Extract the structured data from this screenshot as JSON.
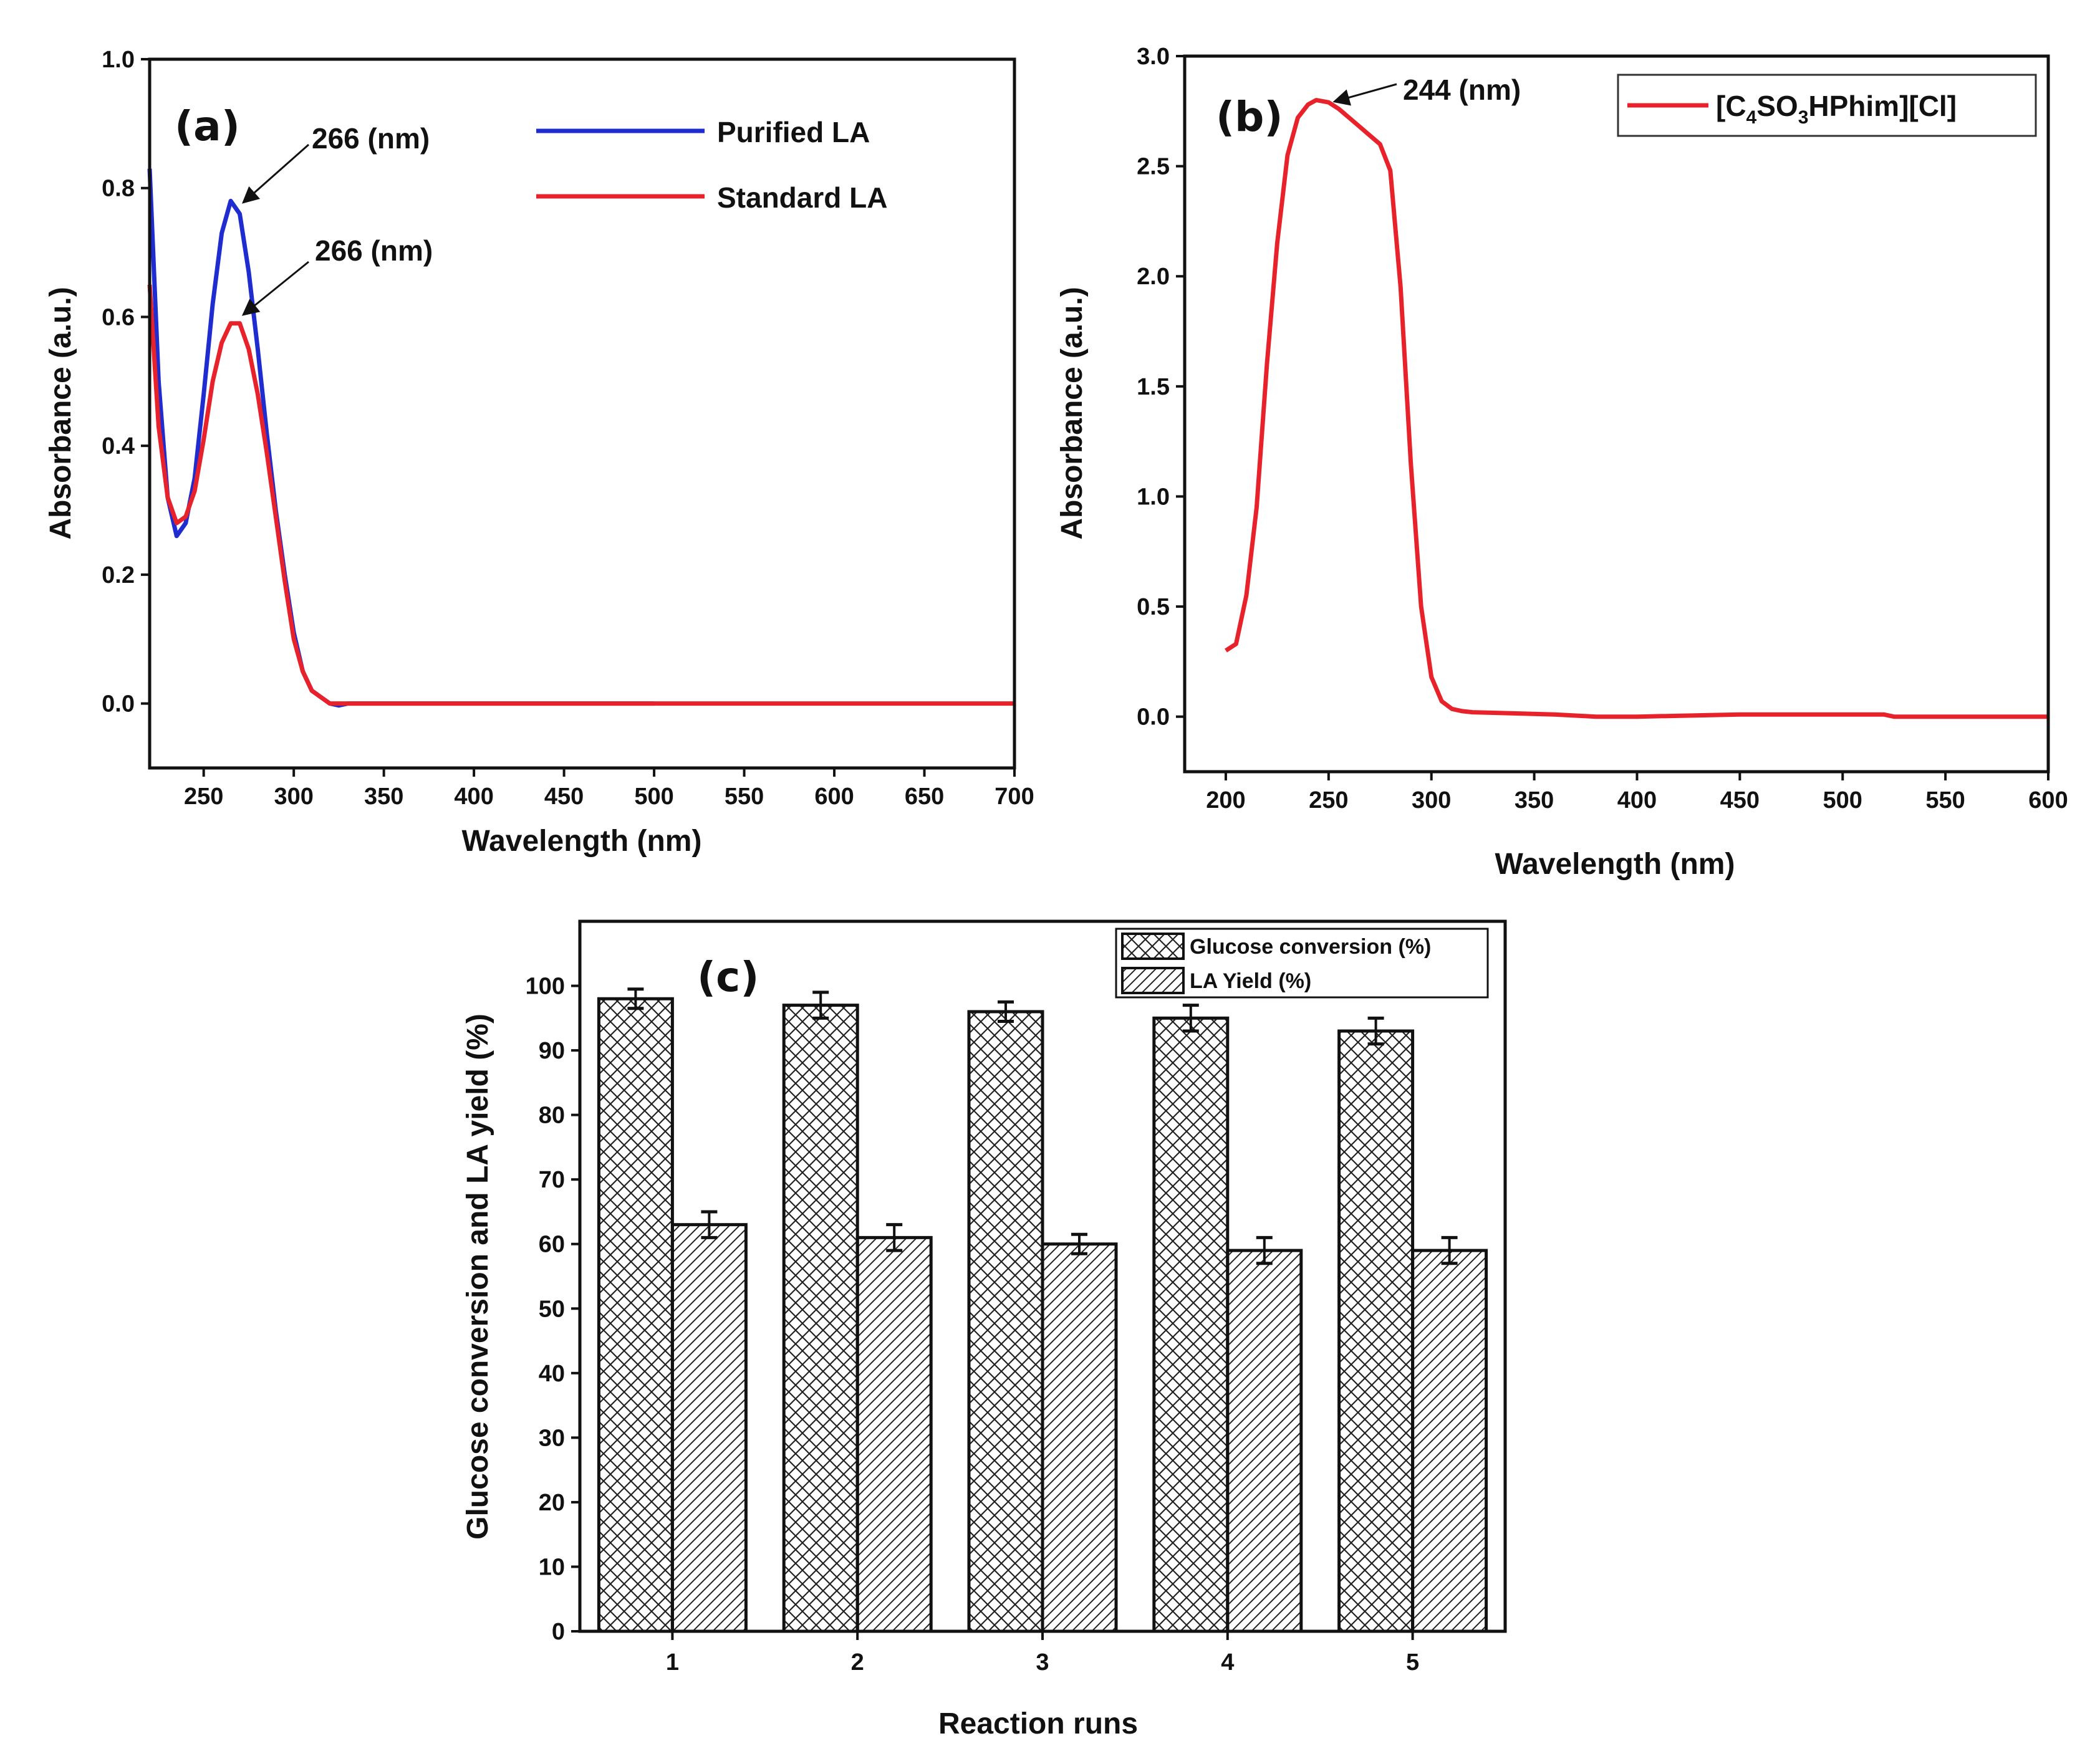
{
  "chart_data": [
    {
      "type": "line",
      "panel": "(a)",
      "xlabel": "Wavelength (nm)",
      "ylabel": "Absorbance (a.u.)",
      "xlim": [
        220,
        700
      ],
      "ylim": [
        -0.1,
        1.0
      ],
      "xticks": [
        "250",
        "300",
        "350",
        "400",
        "450",
        "500",
        "550",
        "600",
        "650",
        "700"
      ],
      "yticks": [
        "0.0",
        "0.2",
        "0.4",
        "0.6",
        "0.8",
        "1.0"
      ],
      "series": [
        {
          "name": "Purified LA",
          "color": "#1f2ccf",
          "x": [
            220,
            225,
            230,
            235,
            240,
            245,
            250,
            255,
            260,
            265,
            270,
            275,
            280,
            285,
            290,
            295,
            300,
            305,
            310,
            315,
            320,
            325,
            330,
            350,
            400,
            450,
            500
          ],
          "y": [
            0.83,
            0.5,
            0.32,
            0.26,
            0.28,
            0.35,
            0.48,
            0.62,
            0.73,
            0.78,
            0.76,
            0.67,
            0.55,
            0.42,
            0.3,
            0.2,
            0.11,
            0.05,
            0.02,
            0.01,
            0.0,
            -0.003,
            0.0,
            0.0,
            0.0,
            0.0,
            0.0
          ]
        },
        {
          "name": "Standard LA",
          "color": "#e8222a",
          "x": [
            220,
            225,
            230,
            235,
            240,
            245,
            250,
            255,
            260,
            265,
            270,
            275,
            280,
            285,
            290,
            295,
            300,
            305,
            310,
            315,
            320,
            325,
            330,
            400,
            500,
            600,
            700
          ],
          "y": [
            0.65,
            0.43,
            0.32,
            0.28,
            0.29,
            0.33,
            0.41,
            0.5,
            0.56,
            0.59,
            0.59,
            0.55,
            0.48,
            0.39,
            0.29,
            0.19,
            0.1,
            0.05,
            0.02,
            0.01,
            0.0,
            0.0,
            0.0,
            0.0,
            0.0,
            0.0,
            0.0
          ]
        }
      ],
      "annotations": [
        {
          "text": "266 (nm)",
          "x": 266,
          "y": 0.78
        },
        {
          "text": "266 (nm)",
          "x": 266,
          "y": 0.6
        }
      ]
    },
    {
      "type": "line",
      "panel": "(b)",
      "xlabel": "Wavelength (nm)",
      "ylabel": "Absorbance (a.u.)",
      "xlim": [
        180,
        600
      ],
      "ylim": [
        -0.25,
        3.0
      ],
      "xticks": [
        "200",
        "250",
        "300",
        "350",
        "400",
        "450",
        "500",
        "550",
        "600"
      ],
      "yticks": [
        "0.0",
        "0.5",
        "1.0",
        "1.5",
        "2.0",
        "2.5",
        "3.0"
      ],
      "series": [
        {
          "name": "[C4SO3HPhim][Cl]",
          "color": "#e8222a",
          "x": [
            200,
            205,
            210,
            215,
            220,
            225,
            230,
            235,
            240,
            244,
            250,
            255,
            260,
            265,
            270,
            275,
            280,
            285,
            290,
            295,
            300,
            305,
            310,
            315,
            320,
            340,
            360,
            380,
            400,
            450,
            500,
            520,
            525,
            550,
            600
          ],
          "y": [
            0.3,
            0.33,
            0.55,
            0.95,
            1.6,
            2.15,
            2.55,
            2.72,
            2.78,
            2.8,
            2.79,
            2.76,
            2.72,
            2.68,
            2.64,
            2.6,
            2.48,
            1.95,
            1.15,
            0.5,
            0.18,
            0.07,
            0.035,
            0.025,
            0.02,
            0.015,
            0.01,
            0.0,
            0.0,
            0.01,
            0.01,
            0.01,
            0.0,
            0.0,
            0.0
          ]
        }
      ],
      "annotations": [
        {
          "text": "244 (nm)",
          "x": 244,
          "y": 2.8
        }
      ],
      "legend_parts": {
        "a": "[C",
        "b": "4",
        "c": "SO",
        "d": "3",
        "e": "HPhim][Cl]"
      }
    },
    {
      "type": "bar",
      "panel": "(c)",
      "xlabel": "Reaction runs",
      "ylabel": "Glucose conversion and LA yield (%)",
      "categories": [
        "1",
        "2",
        "3",
        "4",
        "5"
      ],
      "ylim": [
        0,
        110
      ],
      "yticks": [
        "0",
        "10",
        "20",
        "30",
        "40",
        "50",
        "60",
        "70",
        "80",
        "90",
        "100"
      ],
      "series": [
        {
          "name": "Glucose conversion (%)",
          "values": [
            98,
            97,
            96,
            95,
            93
          ],
          "errors": [
            1.5,
            2.0,
            1.5,
            2.0,
            2.0
          ]
        },
        {
          "name": "LA Yield (%)",
          "values": [
            63,
            61,
            60,
            59,
            59
          ],
          "errors": [
            2.0,
            2.0,
            1.5,
            2.0,
            2.0
          ]
        }
      ]
    }
  ]
}
